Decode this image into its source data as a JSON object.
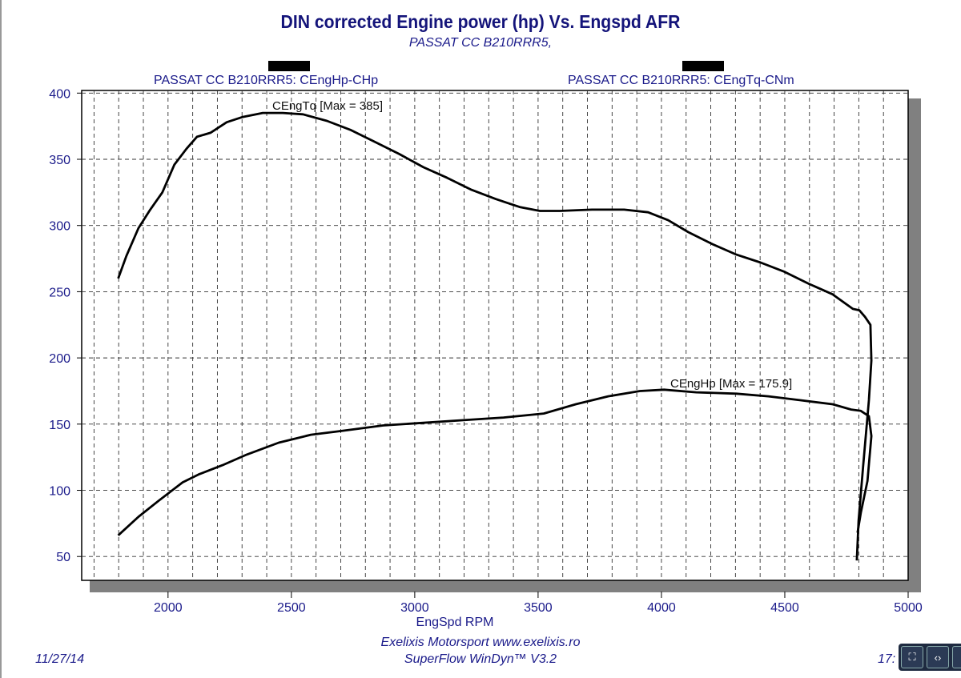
{
  "title": "DIN corrected Engine power (hp) Vs. Engspd AFR",
  "subtitle": "PASSAT CC B210RRR5,",
  "footer": {
    "date": "11/27/14",
    "company": "Exelixis Motorsport www.exelixis.ro",
    "software": "SuperFlow WinDyn™ V3.2",
    "time_partial": "17:"
  },
  "viewer_controls": [
    {
      "icon": "fit-page-icon",
      "glyph": "⛶"
    },
    {
      "icon": "code-brackets-icon",
      "glyph": "‹›"
    },
    {
      "icon": "search-icon",
      "glyph": "○"
    }
  ],
  "chart_data": {
    "type": "line",
    "title": "DIN corrected Engine power (hp) Vs. Engspd AFR",
    "xlabel": "EngSpd RPM",
    "ylabel": "",
    "xlim": [
      1650,
      5000
    ],
    "ylim": [
      32,
      402
    ],
    "xticks": [
      2000,
      2500,
      3000,
      3500,
      4000,
      4500,
      5000
    ],
    "yticks": [
      50,
      100,
      150,
      200,
      250,
      300,
      350,
      400
    ],
    "grid": true,
    "legend_placement": "top",
    "line_color": "#000000",
    "text_color": "#1a1a8a",
    "series": [
      {
        "name": "PASSAT CC B210RRR5: CEngHp-CHp",
        "annotation": "CEngHp [Max = 175.9]",
        "x": [
          1798,
          1880,
          1961,
          2059,
          2124,
          2221,
          2319,
          2449,
          2579,
          2709,
          2872,
          3035,
          3197,
          3360,
          3523,
          3653,
          3784,
          3913,
          4011,
          4141,
          4304,
          4434,
          4564,
          4694,
          4769,
          4808,
          4841,
          4851,
          4835,
          4808,
          4795
        ],
        "y": [
          66,
          80,
          92,
          106,
          112,
          119,
          127,
          136,
          142,
          145,
          149,
          151,
          153,
          155,
          158,
          165,
          171,
          175,
          176,
          174,
          173,
          171,
          168,
          165,
          161,
          160,
          156,
          141,
          107,
          83,
          68
        ]
      },
      {
        "name": "PASSAT CC B210RRR5: CEngTq-CNm",
        "annotation": "CEngTq [Max = 385]",
        "x": [
          1798,
          1831,
          1880,
          1928,
          1977,
          2026,
          2075,
          2117,
          2172,
          2238,
          2303,
          2384,
          2465,
          2547,
          2644,
          2742,
          2840,
          2937,
          3035,
          3132,
          3230,
          3328,
          3425,
          3507,
          3588,
          3718,
          3849,
          3946,
          4027,
          4109,
          4206,
          4304,
          4402,
          4499,
          4597,
          4694,
          4776,
          4802,
          4825,
          4847,
          4851,
          4841,
          4818,
          4799,
          4792
        ],
        "y": [
          260,
          277,
          298,
          312,
          325,
          346,
          358,
          367,
          370,
          378,
          382,
          385,
          385,
          384,
          379,
          372,
          363,
          354,
          344,
          336,
          327,
          320,
          314,
          311,
          311,
          312,
          312,
          310,
          304,
          295,
          286,
          278,
          272,
          265,
          256,
          248,
          237,
          236,
          231,
          225,
          198,
          168,
          119,
          77,
          47
        ]
      }
    ]
  }
}
